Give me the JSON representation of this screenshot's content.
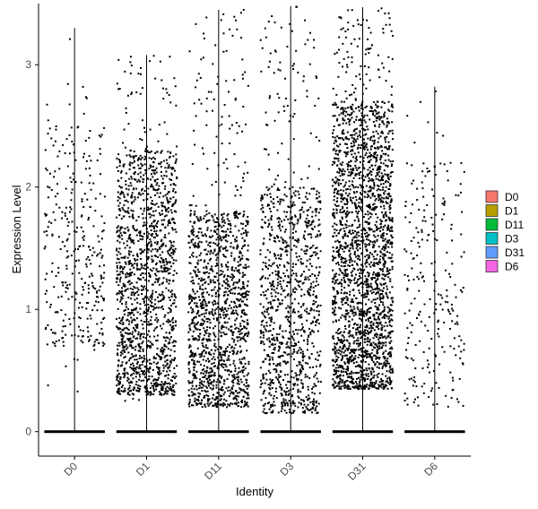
{
  "chart_data": {
    "type": "scatter",
    "subtype": "jittered-violin-points",
    "title": "",
    "xlabel": "Identity",
    "ylabel": "Expression Level",
    "categories": [
      "D0",
      "D1",
      "D11",
      "D3",
      "D31",
      "D6"
    ],
    "ylim": [
      -0.2,
      3.5
    ],
    "yticks": [
      0,
      1,
      2,
      3
    ],
    "grid": false,
    "legend_position": "right",
    "legend": [
      {
        "label": "D0",
        "color": "#F8766D"
      },
      {
        "label": "D1",
        "color": "#B79F00"
      },
      {
        "label": "D11",
        "color": "#00BA38"
      },
      {
        "label": "D3",
        "color": "#00BFC4"
      },
      {
        "label": "D31",
        "color": "#619CFF"
      },
      {
        "label": "D6",
        "color": "#F564E3"
      }
    ],
    "series": [
      {
        "category": "D0",
        "max": 3.3,
        "nonzero_min": 0.25,
        "nonzero_max": 3.3,
        "points_above_zero": 330,
        "concentrate_low": 0.7,
        "concentrate_high": 2.5
      },
      {
        "category": "D1",
        "max": 3.08,
        "nonzero_min": 0.25,
        "nonzero_max": 3.08,
        "points_above_zero": 1500,
        "concentrate_low": 0.3,
        "concentrate_high": 2.3
      },
      {
        "category": "D11",
        "max": 3.45,
        "nonzero_min": 0.2,
        "nonzero_max": 3.45,
        "points_above_zero": 1350,
        "concentrate_low": 0.2,
        "concentrate_high": 1.8
      },
      {
        "category": "D3",
        "max": 3.48,
        "nonzero_min": 0.15,
        "nonzero_max": 3.48,
        "points_above_zero": 1050,
        "concentrate_low": 0.15,
        "concentrate_high": 2.0
      },
      {
        "category": "D31",
        "max": 3.47,
        "nonzero_min": 0.35,
        "nonzero_max": 3.47,
        "points_above_zero": 2300,
        "concentrate_low": 0.35,
        "concentrate_high": 2.7
      },
      {
        "category": "D6",
        "max": 2.82,
        "nonzero_min": 0.2,
        "nonzero_max": 2.82,
        "points_above_zero": 240,
        "concentrate_low": 0.2,
        "concentrate_high": 2.2
      }
    ],
    "zero_band": true
  }
}
